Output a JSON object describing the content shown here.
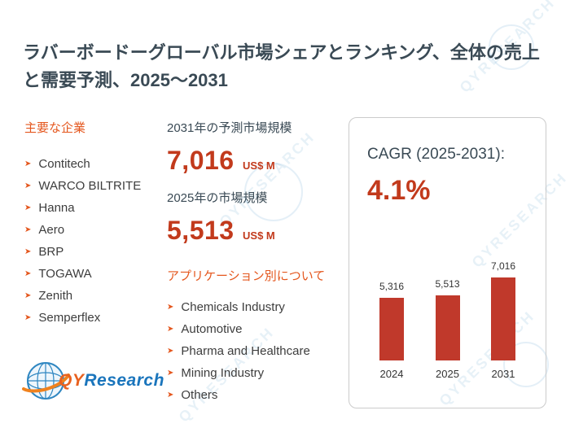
{
  "title": "ラバーボードーグローバル市場シェアとランキング、全体の売上と需要予測、2025～2031",
  "companies": {
    "heading": "主要な企業",
    "items": [
      "Contitech",
      "WARCO BILTRITE",
      "Hanna",
      "Aero",
      "BRP",
      "TOGAWA",
      "Zenith",
      "Semperflex"
    ]
  },
  "stats": {
    "forecast_label": "2031年の予測市場規模",
    "forecast_value": "7,016",
    "current_label": "2025年の市場規模",
    "current_value": "5,513",
    "unit": "US$ M"
  },
  "applications": {
    "heading": "アプリケーション別について",
    "items": [
      "Chemicals Industry",
      "Automotive",
      "Pharma and Healthcare",
      "Mining Industry",
      "Others"
    ]
  },
  "cagr": {
    "label": "CAGR (2025-2031):",
    "value": "4.1%"
  },
  "chart_data": {
    "type": "bar",
    "categories": [
      "2024",
      "2025",
      "2031"
    ],
    "values": [
      5316,
      5513,
      7016
    ],
    "value_labels": [
      "5,316",
      "5,513",
      "7,016"
    ],
    "title": "",
    "xlabel": "",
    "ylabel": "US$ M",
    "ylim": [
      0,
      7016
    ],
    "grid": false,
    "legend": "none",
    "bar_color": "#c0392b"
  },
  "logo": {
    "qy": "QY",
    "research": "Research"
  },
  "watermark_text": "QYRESEARCH",
  "colors": {
    "accent_orange": "#e4571e",
    "number_red": "#c23a1c",
    "title_dark": "#3a4a55",
    "bar_red": "#c0392b"
  }
}
